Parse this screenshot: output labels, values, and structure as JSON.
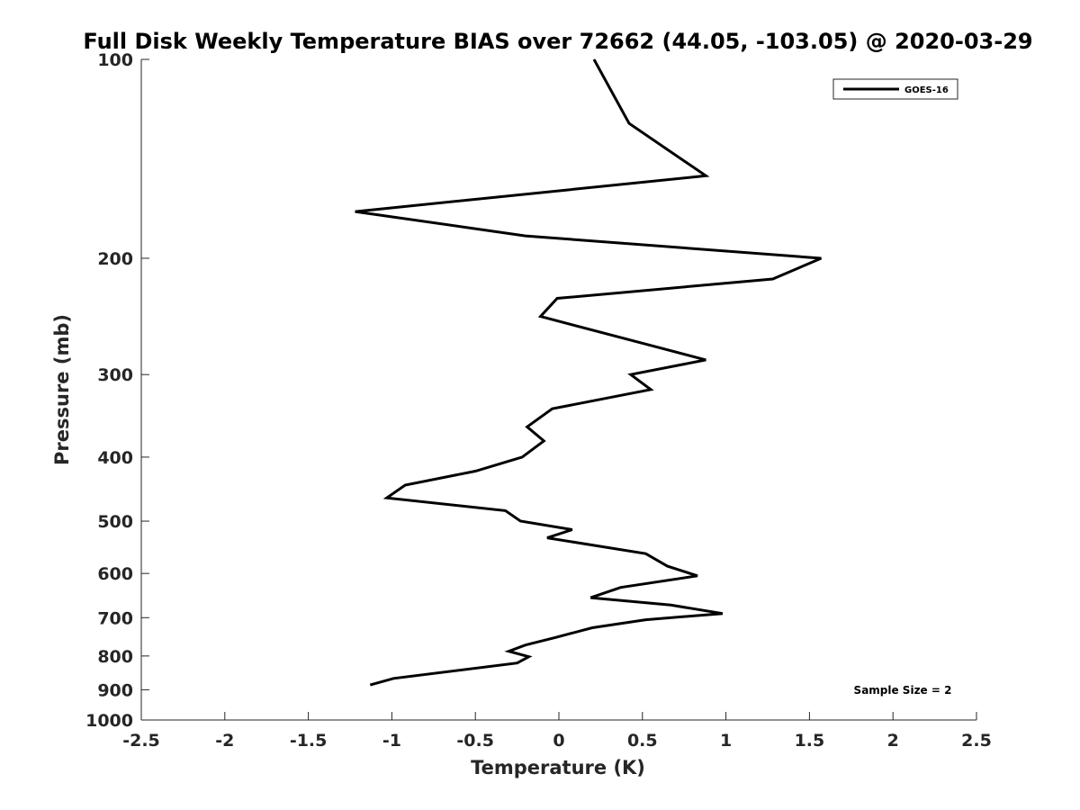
{
  "chart_data": {
    "type": "line",
    "title": "Full Disk Weekly Temperature BIAS over 72662 (44.05, -103.05) @ 2020-03-29",
    "xlabel": "Temperature (K)",
    "ylabel": "Pressure (mb)",
    "xlim": [
      -2.5,
      2.5
    ],
    "ylim": [
      1000,
      100
    ],
    "y_scale": "log",
    "y_reversed": true,
    "x_ticks": [
      "-2.5",
      "-2",
      "-1.5",
      "-1",
      "-0.5",
      "0",
      "0.5",
      "1",
      "1.5",
      "2",
      "2.5"
    ],
    "x_tick_values": [
      -2.5,
      -2,
      -1.5,
      -1,
      -0.5,
      0,
      0.5,
      1,
      1.5,
      2,
      2.5
    ],
    "y_ticks": [
      "100",
      "200",
      "300",
      "400",
      "500",
      "600",
      "700",
      "800",
      "900",
      "1000"
    ],
    "y_tick_values": [
      100,
      200,
      300,
      400,
      500,
      600,
      700,
      800,
      900,
      1000
    ],
    "grid": false,
    "legend_position": "top-right",
    "series": [
      {
        "name": "GOES-16",
        "color": "#000000",
        "points": [
          {
            "t": 0.21,
            "p": 100
          },
          {
            "t": 0.42,
            "p": 125
          },
          {
            "t": 0.88,
            "p": 150
          },
          {
            "t": -1.22,
            "p": 170
          },
          {
            "t": -0.2,
            "p": 185
          },
          {
            "t": 1.57,
            "p": 200
          },
          {
            "t": 1.28,
            "p": 215
          },
          {
            "t": -0.01,
            "p": 230
          },
          {
            "t": -0.11,
            "p": 245
          },
          {
            "t": 0.88,
            "p": 285
          },
          {
            "t": 0.43,
            "p": 300
          },
          {
            "t": 0.55,
            "p": 316
          },
          {
            "t": -0.04,
            "p": 338
          },
          {
            "t": -0.19,
            "p": 360
          },
          {
            "t": -0.09,
            "p": 378
          },
          {
            "t": -0.22,
            "p": 400
          },
          {
            "t": -0.5,
            "p": 420
          },
          {
            "t": -0.92,
            "p": 441
          },
          {
            "t": -1.03,
            "p": 461
          },
          {
            "t": -0.32,
            "p": 482
          },
          {
            "t": -0.23,
            "p": 500
          },
          {
            "t": 0.08,
            "p": 515
          },
          {
            "t": -0.07,
            "p": 530
          },
          {
            "t": 0.52,
            "p": 560
          },
          {
            "t": 0.65,
            "p": 585
          },
          {
            "t": 0.83,
            "p": 605
          },
          {
            "t": 0.37,
            "p": 630
          },
          {
            "t": 0.19,
            "p": 653
          },
          {
            "t": 0.67,
            "p": 670
          },
          {
            "t": 0.98,
            "p": 690
          },
          {
            "t": 0.52,
            "p": 705
          },
          {
            "t": 0.2,
            "p": 725
          },
          {
            "t": -0.02,
            "p": 750
          },
          {
            "t": -0.2,
            "p": 770
          },
          {
            "t": -0.3,
            "p": 787
          },
          {
            "t": -0.18,
            "p": 802
          },
          {
            "t": -0.25,
            "p": 820
          },
          {
            "t": -0.99,
            "p": 865
          },
          {
            "t": -1.13,
            "p": 885
          }
        ]
      }
    ],
    "annotation": "Sample Size = 2"
  }
}
